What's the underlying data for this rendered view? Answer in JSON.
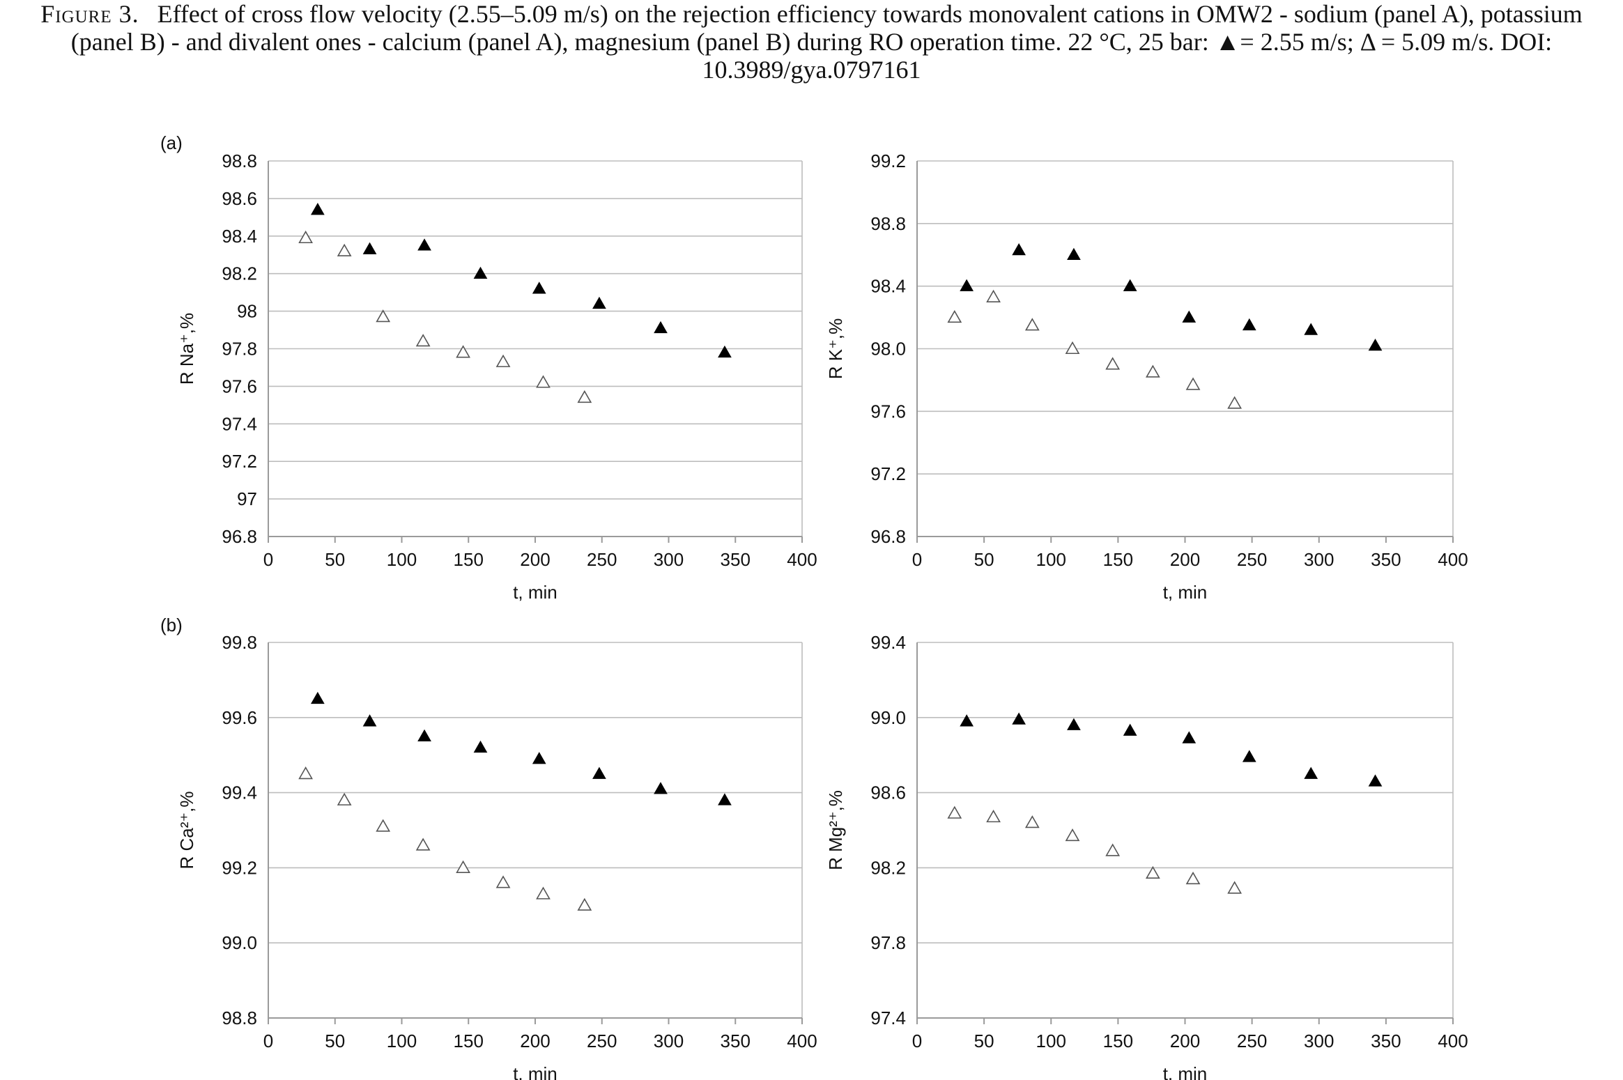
{
  "caption": {
    "figure_label": "Figure 3.",
    "text": "Effect of cross flow velocity (2.55–5.09 m/s) on the rejection efficiency towards monovalent cations in OMW2 - sodium (panel A), potassium (panel B) - and divalent ones - calcium (panel A), magnesium (panel B) during RO operation time. 22 °C, 25 bar: ▲= 2.55 m/s; Δ = 5.09 m/s. DOI: 10.3989/gya.0797161"
  },
  "panel_labels": [
    "(a)",
    "(b)"
  ],
  "colors": {
    "filled": "#000000",
    "open_stroke": "#555555",
    "grid": "#bdbdbd",
    "axis": "#9a9a9a"
  },
  "chart_data": [
    {
      "type": "scatter",
      "ylabel": "R Na⁺,%",
      "xlabel": "t, min",
      "xlim": [
        0,
        400
      ],
      "xticks": [
        0,
        50,
        100,
        150,
        200,
        250,
        300,
        350,
        400
      ],
      "xtick_labels": [
        "0",
        "50",
        "100",
        "150",
        "200",
        "250",
        "300",
        "350",
        "400"
      ],
      "ylim": [
        96.8,
        98.8
      ],
      "yticks": [
        96.8,
        97.0,
        97.2,
        97.4,
        97.6,
        97.8,
        98.0,
        98.2,
        98.4,
        98.6,
        98.8
      ],
      "ytick_labels": [
        "96.8",
        "97",
        "97.2",
        "97.4",
        "97.6",
        "97.8",
        "98",
        "98.2",
        "98.4",
        "98.6",
        "98.8"
      ],
      "grid": "horizontal",
      "series": [
        {
          "marker": "filled-triangle",
          "x": [
            37,
            76,
            117,
            159,
            203,
            248,
            294,
            342
          ],
          "y": [
            98.54,
            98.33,
            98.35,
            98.2,
            98.12,
            98.04,
            97.91,
            97.78
          ]
        },
        {
          "marker": "open-triangle",
          "x": [
            28,
            57,
            86,
            116,
            146,
            176,
            206,
            237
          ],
          "y": [
            98.39,
            98.32,
            97.97,
            97.84,
            97.78,
            97.73,
            97.62,
            97.54
          ]
        }
      ]
    },
    {
      "type": "scatter",
      "ylabel": "R K⁺,%",
      "xlabel": "t, min",
      "xlim": [
        0,
        400
      ],
      "xticks": [
        0,
        50,
        100,
        150,
        200,
        250,
        300,
        350,
        400
      ],
      "xtick_labels": [
        "0",
        "50",
        "100",
        "150",
        "200",
        "250",
        "300",
        "350",
        "400"
      ],
      "ylim": [
        96.8,
        99.2
      ],
      "yticks": [
        96.8,
        97.2,
        97.6,
        98.0,
        98.4,
        98.8,
        99.2
      ],
      "ytick_labels": [
        "96.8",
        "97.2",
        "97.6",
        "98.0",
        "98.4",
        "98.8",
        "99.2"
      ],
      "grid": "horizontal",
      "series": [
        {
          "marker": "filled-triangle",
          "x": [
            37,
            76,
            117,
            159,
            203,
            248,
            294,
            342
          ],
          "y": [
            98.4,
            98.63,
            98.6,
            98.4,
            98.2,
            98.15,
            98.12,
            98.02
          ]
        },
        {
          "marker": "open-triangle",
          "x": [
            28,
            57,
            86,
            116,
            146,
            176,
            206,
            237
          ],
          "y": [
            98.2,
            98.33,
            98.15,
            98.0,
            97.9,
            97.85,
            97.77,
            97.65
          ]
        }
      ]
    },
    {
      "type": "scatter",
      "ylabel": "R Ca²⁺,%",
      "xlabel": "t, min",
      "xlim": [
        0,
        400
      ],
      "xticks": [
        0,
        50,
        100,
        150,
        200,
        250,
        300,
        350,
        400
      ],
      "xtick_labels": [
        "0",
        "50",
        "100",
        "150",
        "200",
        "250",
        "300",
        "350",
        "400"
      ],
      "ylim": [
        98.8,
        99.8
      ],
      "yticks": [
        98.8,
        99.0,
        99.2,
        99.4,
        99.6,
        99.8
      ],
      "ytick_labels": [
        "98.8",
        "99.0",
        "99.2",
        "99.4",
        "99.6",
        "99.8"
      ],
      "grid": "horizontal",
      "series": [
        {
          "marker": "filled-triangle",
          "x": [
            37,
            76,
            117,
            159,
            203,
            248,
            294,
            342
          ],
          "y": [
            99.65,
            99.59,
            99.55,
            99.52,
            99.49,
            99.45,
            99.41,
            99.38
          ]
        },
        {
          "marker": "open-triangle",
          "x": [
            28,
            57,
            86,
            116,
            146,
            176,
            206,
            237
          ],
          "y": [
            99.45,
            99.38,
            99.31,
            99.26,
            99.2,
            99.16,
            99.13,
            99.1
          ]
        }
      ]
    },
    {
      "type": "scatter",
      "ylabel": "R Mg²⁺,%",
      "xlabel": "t, min",
      "xlim": [
        0,
        400
      ],
      "xticks": [
        0,
        50,
        100,
        150,
        200,
        250,
        300,
        350,
        400
      ],
      "xtick_labels": [
        "0",
        "50",
        "100",
        "150",
        "200",
        "250",
        "300",
        "350",
        "400"
      ],
      "ylim": [
        97.4,
        99.4
      ],
      "yticks": [
        97.4,
        97.8,
        98.2,
        98.6,
        99.0,
        99.4
      ],
      "ytick_labels": [
        "97.4",
        "97.8",
        "98.2",
        "98.6",
        "99.0",
        "99.4"
      ],
      "grid": "horizontal",
      "series": [
        {
          "marker": "filled-triangle",
          "x": [
            37,
            76,
            117,
            159,
            203,
            248,
            294,
            342
          ],
          "y": [
            98.98,
            98.99,
            98.96,
            98.93,
            98.89,
            98.79,
            98.7,
            98.66
          ]
        },
        {
          "marker": "open-triangle",
          "x": [
            28,
            57,
            86,
            116,
            146,
            176,
            206,
            237
          ],
          "y": [
            98.49,
            98.47,
            98.44,
            98.37,
            98.29,
            98.17,
            98.14,
            98.09
          ]
        }
      ]
    }
  ]
}
